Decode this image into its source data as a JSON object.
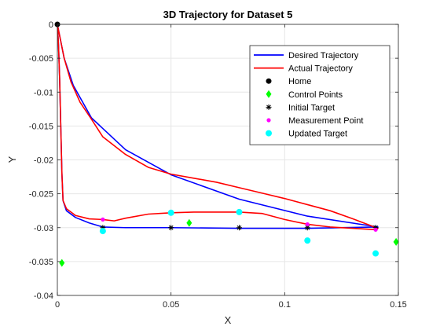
{
  "chart_data": {
    "type": "line",
    "title": "3D Trajectory for Dataset 5",
    "xlabel": "X",
    "ylabel": "Y",
    "xlim": [
      0,
      0.15
    ],
    "ylim": [
      -0.04,
      0
    ],
    "xticks": [
      0,
      0.05,
      0.1,
      0.15
    ],
    "xtick_labels": [
      "0",
      "0.05",
      "0.1",
      "0.15"
    ],
    "yticks": [
      0,
      -0.005,
      -0.01,
      -0.015,
      -0.02,
      -0.025,
      -0.03,
      -0.035,
      -0.04
    ],
    "ytick_labels": [
      "0",
      "-0.005",
      "-0.01",
      "-0.015",
      "-0.02",
      "-0.025",
      "-0.03",
      "-0.035",
      "-0.04"
    ],
    "grid": true,
    "legend_position": "top-right",
    "colors": {
      "desired": "#0000ff",
      "actual": "#ff0000",
      "home": "#000000",
      "control": "#00ff00",
      "initial": "#000000",
      "measurement": "#ff00ff",
      "updated": "#00ffff"
    },
    "series": [
      {
        "name": "Desired Trajectory",
        "kind": "line",
        "color": "#0000ff",
        "points": [
          [
            0,
            0
          ],
          [
            0.0005,
            -0.003
          ],
          [
            0.001,
            -0.008
          ],
          [
            0.0015,
            -0.015
          ],
          [
            0.002,
            -0.022
          ],
          [
            0.0025,
            -0.026
          ],
          [
            0.004,
            -0.0275
          ],
          [
            0.008,
            -0.0285
          ],
          [
            0.014,
            -0.0293
          ],
          [
            0.02,
            -0.0299
          ],
          [
            0.03,
            -0.03
          ],
          [
            0.05,
            -0.03
          ],
          [
            0.08,
            -0.0301
          ],
          [
            0.11,
            -0.0301
          ],
          [
            0.14,
            -0.0299
          ],
          [
            0.141,
            -0.0299
          ],
          [
            0.11,
            -0.0283
          ],
          [
            0.08,
            -0.0258
          ],
          [
            0.05,
            -0.0222
          ],
          [
            0.03,
            -0.0185
          ],
          [
            0.015,
            -0.0138
          ],
          [
            0.007,
            -0.009
          ],
          [
            0.003,
            -0.005
          ],
          [
            0.0012,
            -0.002
          ],
          [
            0,
            0
          ]
        ]
      },
      {
        "name": "Actual Trajectory",
        "kind": "line",
        "color": "#ff0000",
        "points": [
          [
            0,
            0
          ],
          [
            0.0005,
            -0.003
          ],
          [
            0.001,
            -0.008
          ],
          [
            0.0015,
            -0.015
          ],
          [
            0.002,
            -0.022
          ],
          [
            0.0025,
            -0.026
          ],
          [
            0.004,
            -0.0272
          ],
          [
            0.008,
            -0.0282
          ],
          [
            0.014,
            -0.0287
          ],
          [
            0.02,
            -0.0288
          ],
          [
            0.025,
            -0.029
          ],
          [
            0.03,
            -0.0286
          ],
          [
            0.04,
            -0.028
          ],
          [
            0.05,
            -0.0278
          ],
          [
            0.06,
            -0.0277
          ],
          [
            0.07,
            -0.0277
          ],
          [
            0.08,
            -0.0277
          ],
          [
            0.09,
            -0.0279
          ],
          [
            0.1,
            -0.0288
          ],
          [
            0.11,
            -0.0295
          ],
          [
            0.12,
            -0.0299
          ],
          [
            0.13,
            -0.0301
          ],
          [
            0.14,
            -0.0303
          ],
          [
            0.141,
            -0.0301
          ],
          [
            0.13,
            -0.0287
          ],
          [
            0.12,
            -0.0275
          ],
          [
            0.11,
            -0.0266
          ],
          [
            0.1,
            -0.0257
          ],
          [
            0.09,
            -0.0249
          ],
          [
            0.08,
            -0.0241
          ],
          [
            0.07,
            -0.0233
          ],
          [
            0.06,
            -0.0227
          ],
          [
            0.05,
            -0.0221
          ],
          [
            0.04,
            -0.0211
          ],
          [
            0.03,
            -0.0192
          ],
          [
            0.02,
            -0.0166
          ],
          [
            0.015,
            -0.014
          ],
          [
            0.01,
            -0.0115
          ],
          [
            0.006,
            -0.0085
          ],
          [
            0.003,
            -0.005
          ],
          [
            0.0012,
            -0.002
          ],
          [
            0,
            0
          ]
        ]
      },
      {
        "name": "Home",
        "kind": "point",
        "marker": "circle",
        "color": "#000000",
        "points": [
          [
            0,
            0
          ]
        ]
      },
      {
        "name": "Control Points",
        "kind": "point",
        "marker": "diamond",
        "color": "#00ff00",
        "points": [
          [
            0.002,
            -0.0352
          ],
          [
            0.058,
            -0.0293
          ],
          [
            0.149,
            -0.0321
          ]
        ]
      },
      {
        "name": "Initial Target",
        "kind": "point",
        "marker": "asterisk",
        "color": "#000000",
        "points": [
          [
            0.02,
            -0.03
          ],
          [
            0.05,
            -0.03
          ],
          [
            0.08,
            -0.03
          ],
          [
            0.11,
            -0.03
          ],
          [
            0.14,
            -0.03
          ]
        ]
      },
      {
        "name": "Measurement Point",
        "kind": "point",
        "marker": "dot",
        "color": "#ff00ff",
        "points": [
          [
            0.02,
            -0.0288
          ],
          [
            0.05,
            -0.0278
          ],
          [
            0.08,
            -0.0277
          ],
          [
            0.11,
            -0.0295
          ],
          [
            0.14,
            -0.0303
          ]
        ]
      },
      {
        "name": "Updated Target",
        "kind": "point",
        "marker": "bigcircle",
        "color": "#00ffff",
        "points": [
          [
            0.02,
            -0.0305
          ],
          [
            0.05,
            -0.0278
          ],
          [
            0.08,
            -0.0277
          ],
          [
            0.11,
            -0.0319
          ],
          [
            0.14,
            -0.0338
          ]
        ]
      }
    ]
  }
}
